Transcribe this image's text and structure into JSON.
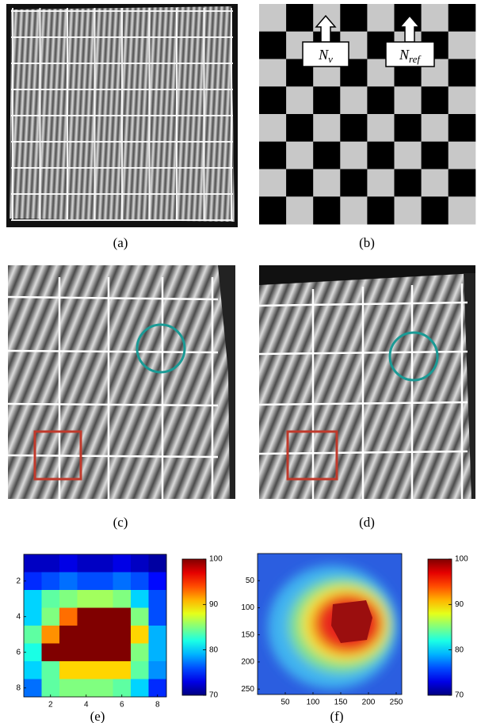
{
  "panels": {
    "a": {
      "label": "(a)"
    },
    "b": {
      "label": "(b)",
      "arrows": [
        {
          "symbol": "N",
          "subscript": "ν"
        },
        {
          "symbol": "N",
          "subscript": "ref"
        }
      ]
    },
    "c": {
      "label": "(c)"
    },
    "d": {
      "label": "(d)"
    }
  },
  "chart_data": [
    {
      "type": "heatmap",
      "label": "(e)",
      "xlim": [
        0.5,
        8.5
      ],
      "ylim": [
        0.5,
        8.5
      ],
      "xticks": [
        2,
        4,
        6,
        8
      ],
      "yticks": [
        2,
        4,
        6,
        8
      ],
      "values": [
        [
          72,
          72,
          73,
          72,
          72,
          73,
          72,
          71
        ],
        [
          75,
          76,
          77,
          76,
          76,
          77,
          76,
          74
        ],
        [
          80,
          84,
          85,
          86,
          86,
          85,
          80,
          76
        ],
        [
          80,
          85,
          93,
          100,
          100,
          100,
          85,
          76
        ],
        [
          84,
          92,
          100,
          100,
          100,
          100,
          90,
          79
        ],
        [
          82,
          100,
          100,
          100,
          100,
          100,
          85,
          79
        ],
        [
          80,
          84,
          90,
          90,
          90,
          90,
          84,
          78
        ],
        [
          77,
          84,
          85,
          85,
          85,
          84,
          80,
          75
        ]
      ],
      "colorbar": {
        "clim": [
          70,
          100
        ],
        "ticks": [
          70,
          80,
          90,
          100
        ]
      }
    },
    {
      "type": "contour",
      "label": "(f)",
      "xlim": [
        0,
        260
      ],
      "ylim": [
        0,
        260
      ],
      "xticks": [
        50,
        100,
        150,
        200,
        250
      ],
      "yticks": [
        50,
        100,
        150,
        200,
        250
      ],
      "colorbar": {
        "clim": [
          70,
          100
        ],
        "ticks": [
          70,
          80,
          90,
          100
        ]
      }
    }
  ]
}
